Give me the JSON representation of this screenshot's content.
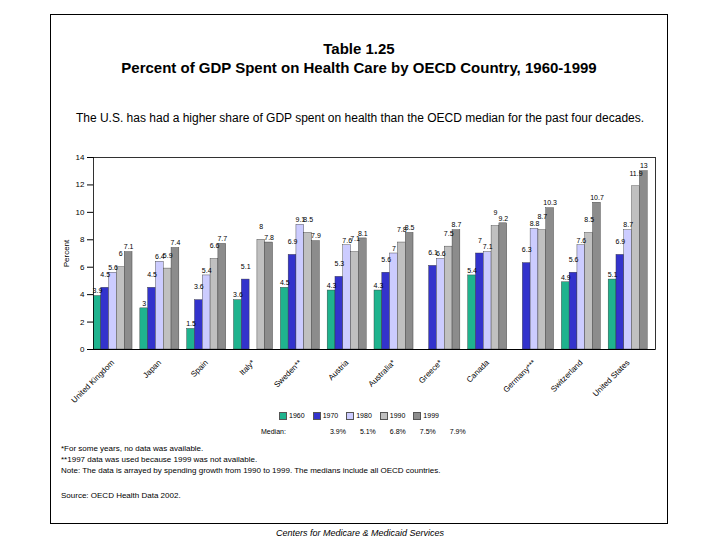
{
  "chart_data": {
    "type": "bar",
    "title": "Table 1.25",
    "title_line2": "Percent of GDP Spent on Health Care by OECD Country, 1960-1999",
    "subtitle": "The U.S. has had a higher share of GDP spent on health than the OECD median for the past four decades.",
    "y_label": "Percent",
    "categories": [
      "United Kingdom",
      "Japan",
      "Spain",
      "Italy*",
      "Sweden**",
      "Austria",
      "Australia*",
      "Greece*",
      "Canada",
      "Germany***",
      "Switzerland",
      "United States"
    ],
    "series": [
      {
        "name": "1960",
        "color": "#1fb38e",
        "values": [
          3.9,
          3,
          1.5,
          3.6,
          4.5,
          4.3,
          4.3,
          null,
          5.4,
          null,
          4.9,
          5.1
        ]
      },
      {
        "name": "1970",
        "color": "#3333cc",
        "values": [
          4.5,
          4.5,
          3.6,
          5.1,
          6.9,
          5.3,
          5.6,
          6.1,
          7,
          6.3,
          5.6,
          6.9
        ]
      },
      {
        "name": "1980",
        "color": "#ccccff",
        "values": [
          5.6,
          6.4,
          5.4,
          null,
          9.1,
          7.6,
          7,
          6.6,
          7.1,
          8.8,
          7.6,
          8.7
        ]
      },
      {
        "name": "1990",
        "color": "#c0c0c0",
        "values": [
          6,
          5.9,
          6.6,
          8,
          8.5,
          7.1,
          7.8,
          7.5,
          9,
          8.7,
          8.5,
          11.9
        ]
      },
      {
        "name": "1999",
        "color": "#8c8c8c",
        "values": [
          7.1,
          7.4,
          7.7,
          7.8,
          7.9,
          8.1,
          8.5,
          8.7,
          9.2,
          10.3,
          10.7,
          13
        ]
      }
    ],
    "ylim": [
      0,
      14
    ],
    "yticks": [
      0,
      2,
      4,
      6,
      8,
      10,
      12,
      14
    ],
    "data_labels": true,
    "legend": "bottom",
    "median": {
      "label": "Median:",
      "values": [
        3.9,
        5.1,
        6.8,
        7.5,
        7.9
      ],
      "value_labels": [
        "3.9%",
        "5.1%",
        "6.8%",
        "7.5%",
        "7.9%"
      ]
    },
    "notes": [
      "*For some years, no data was available.",
      "**1997 data was used because 1999 was not available.",
      "Note: The data is arrayed by spending growth from 1990 to 1999. The medians include all OECD countries."
    ],
    "source": "Source: OECD Health Data 2002.",
    "footer": "Centers for Medicare & Medicaid Services"
  }
}
